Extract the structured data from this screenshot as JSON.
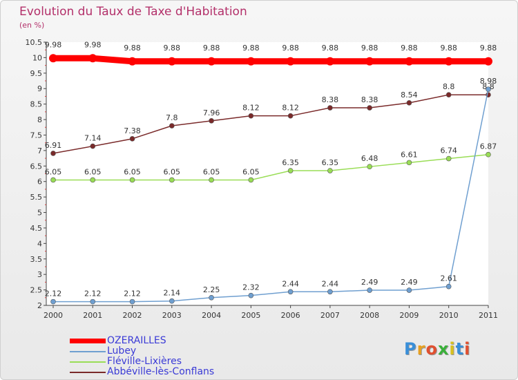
{
  "header": {
    "title": "Evolution du Taux de Taxe d'Habitation",
    "subtitle": "(en %)"
  },
  "chart_data": {
    "type": "line",
    "title": "Evolution du Taux de Taxe d'Habitation",
    "ylabel": "(en %)",
    "xlabel": "",
    "categories": [
      "2000",
      "2001",
      "2002",
      "2003",
      "2004",
      "2005",
      "2006",
      "2007",
      "2008",
      "2009",
      "2010",
      "2011"
    ],
    "ylim": [
      2,
      10.5
    ],
    "yticks": [
      "2",
      "2.5",
      "3",
      "3.5",
      "4",
      "4.5",
      "5",
      "5.5",
      "6",
      "6.5",
      "7",
      "7.5",
      "8",
      "8.5",
      "9",
      "9.5",
      "10",
      "10.5"
    ],
    "grid": false,
    "legend_position": "bottom-left",
    "series": [
      {
        "name": "OZERAILLES",
        "color": "#ff0000",
        "values": [
          9.98,
          9.98,
          9.88,
          9.88,
          9.88,
          9.88,
          9.88,
          9.88,
          9.88,
          9.88,
          9.88,
          9.88
        ],
        "labels": [
          "9.98",
          "9.98",
          "9.88",
          "9.88",
          "9.88",
          "9.88",
          "9.88",
          "9.88",
          "9.88",
          "9.88",
          "9.88",
          "9.88"
        ]
      },
      {
        "name": "Lubey",
        "color": "#6f9fd0",
        "values": [
          2.12,
          2.12,
          2.12,
          2.14,
          2.25,
          2.32,
          2.44,
          2.44,
          2.49,
          2.49,
          2.61,
          8.98
        ],
        "labels": [
          "2.12",
          "2.12",
          "2.12",
          "2.14",
          "2.25",
          "2.32",
          "2.44",
          "2.44",
          "2.49",
          "2.49",
          "2.61",
          "8.98"
        ]
      },
      {
        "name": "Fléville-Lixières",
        "color": "#99dd55",
        "values": [
          6.05,
          6.05,
          6.05,
          6.05,
          6.05,
          6.05,
          6.35,
          6.35,
          6.48,
          6.61,
          6.74,
          6.87
        ],
        "labels": [
          "6.05",
          "6.05",
          "6.05",
          "6.05",
          "6.05",
          "6.05",
          "6.35",
          "6.35",
          "6.48",
          "6.61",
          "6.74",
          "6.87"
        ]
      },
      {
        "name": "Abbéville-lès-Conflans",
        "color": "#7a2a2a",
        "values": [
          6.91,
          7.14,
          7.38,
          7.8,
          7.96,
          8.12,
          8.12,
          8.38,
          8.38,
          8.54,
          8.8,
          8.8
        ],
        "labels": [
          "6.91",
          "7.14",
          "7.38",
          "7.8",
          "7.96",
          "8.12",
          "8.12",
          "8.38",
          "8.38",
          "8.54",
          "8.8",
          "8.8"
        ]
      }
    ]
  },
  "logo": {
    "letters": [
      "P",
      "r",
      "o",
      "x",
      "i",
      "t",
      "i"
    ],
    "colors": [
      "#3a8fd8",
      "#e8a020",
      "#e05030",
      "#3ab03a",
      "#d8c020",
      "#3a8fd8",
      "#e05030"
    ]
  }
}
